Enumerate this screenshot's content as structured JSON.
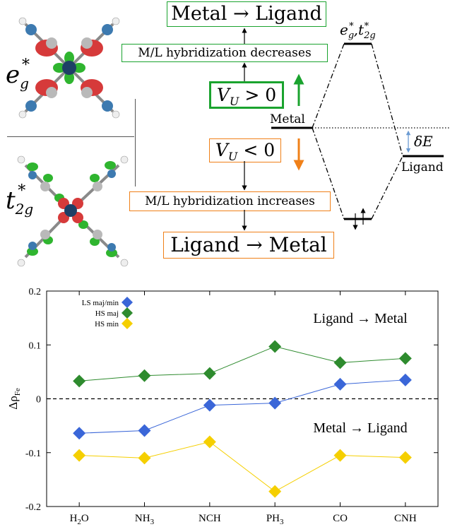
{
  "orbitals": {
    "eg": {
      "base": "e",
      "sub": "g",
      "sup": "*"
    },
    "t2g": {
      "base": "t",
      "sub": "2g",
      "sup": "*"
    }
  },
  "flow": {
    "top_box": "Metal → Ligand",
    "dec_box": "M/L hybridization decreases",
    "vu_pos": "V_U > 0",
    "vu_neg": "V_U < 0",
    "inc_box": "M/L hybridization increases",
    "bottom_box": "Ligand → Metal"
  },
  "level_diagram": {
    "upper_label": "e*_g, t*_2g",
    "metal_label": "Metal",
    "ligand_label": "Ligand",
    "delta_label": "δE"
  },
  "colors": {
    "green": "#1aa32e",
    "orange": "#f08018",
    "blue": "#3a66d8",
    "dark_green": "#2e8b2e",
    "yellow": "#f5cf00"
  },
  "chart_data": {
    "type": "line",
    "categories": [
      "H2O",
      "NH3",
      "NCH",
      "PH3",
      "CO",
      "CNH"
    ],
    "category_labels": [
      {
        "main": "H",
        "sub": "2",
        "tail": "O"
      },
      {
        "main": "NH",
        "sub": "3",
        "tail": ""
      },
      {
        "main": "NCH",
        "sub": "",
        "tail": ""
      },
      {
        "main": "PH",
        "sub": "3",
        "tail": ""
      },
      {
        "main": "CO",
        "sub": "",
        "tail": ""
      },
      {
        "main": "CNH",
        "sub": "",
        "tail": ""
      }
    ],
    "series": [
      {
        "name": "LS maj/min",
        "color": "#3a66d8",
        "values": [
          -0.064,
          -0.059,
          -0.012,
          -0.008,
          0.027,
          0.035
        ]
      },
      {
        "name": "HS maj",
        "color": "#2e8b2e",
        "values": [
          0.033,
          0.043,
          0.047,
          0.097,
          0.067,
          0.075
        ]
      },
      {
        "name": "HS min",
        "color": "#f5cf00",
        "values": [
          -0.105,
          -0.11,
          -0.08,
          -0.172,
          -0.105,
          -0.109
        ]
      }
    ],
    "ylabel": {
      "main": "Δρ",
      "sub": "Fe"
    },
    "ylim": [
      -0.2,
      0.2
    ],
    "yticks": [
      -0.2,
      -0.1,
      0,
      0.1,
      0.2
    ],
    "ytick_labels": [
      "-0.2",
      "-0.1",
      "0",
      "0.1",
      "0.2"
    ],
    "reference_line": 0,
    "annotations": [
      "Ligand → Metal",
      "Metal → Ligand"
    ],
    "legend_position": "top-left",
    "grid": false
  }
}
